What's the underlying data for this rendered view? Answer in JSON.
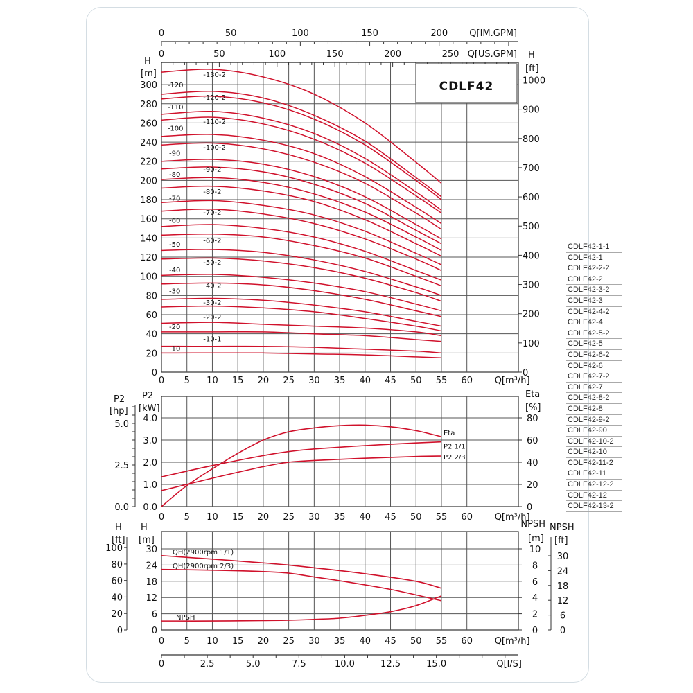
{
  "title_box": "CDLF42",
  "legend": [
    "CDLF42-1-1",
    "CDLF42-1",
    "CDLF42-2-2",
    "CDLF42-2",
    "CDLF42-3-2",
    "CDLF42-3",
    "CDLF42-4-2",
    "CDLF42-4",
    "CDLF42-5-2",
    "CDLF42-5",
    "CDLF42-6-2",
    "CDLF42-6",
    "CDLF42-7-2",
    "CDLF42-7",
    "CDLF42-8-2",
    "CDLF42-8",
    "CDLF42-9-2",
    "CDLF42-90",
    "CDLF42-10-2",
    "CDLF42-10",
    "CDLF42-11-2",
    "CDLF42-11",
    "CDLF42-12-2",
    "CDLF42-12",
    "CDLF42-13-2"
  ],
  "colors": {
    "curve": "#d0112b",
    "grid": "#555555",
    "axis": "#333333"
  },
  "chart_data": [
    {
      "type": "line",
      "xlabel": "Q[m³/h]",
      "ylabel": "H",
      "yunit": "[m]",
      "y2label": "H",
      "y2unit": "[ft]",
      "xlim": [
        0,
        70
      ],
      "ylim": [
        0,
        320
      ],
      "x_ticks": [
        "0",
        "5",
        "10",
        "15",
        "20",
        "25",
        "30",
        "35",
        "40",
        "45",
        "50",
        "55",
        "60"
      ],
      "y_ticks": [
        "0",
        "20",
        "40",
        "60",
        "80",
        "100",
        "120",
        "140",
        "160",
        "180",
        "200",
        "220",
        "240",
        "260",
        "280",
        "300"
      ],
      "y2_ticks": [
        "0",
        "100",
        "200",
        "300",
        "400",
        "500",
        "600",
        "700",
        "800",
        "900",
        "1000"
      ],
      "top_axes": [
        {
          "label": "Q[US.GPM]",
          "ticks": [
            "0",
            "50",
            "100",
            "150",
            "200",
            "250"
          ]
        },
        {
          "label": "Q[IM.GPM]",
          "ticks": [
            "0",
            "50",
            "100",
            "150",
            "200"
          ]
        }
      ],
      "grid": true,
      "x": [
        0,
        10,
        20,
        30,
        40,
        50,
        55
      ],
      "series": [
        {
          "values": [
            313,
            316,
            308,
            290,
            260,
            219,
            197
          ]
        },
        {
          "values": [
            290,
            293,
            286,
            268,
            241,
            203,
            183
          ]
        },
        {
          "values": [
            285,
            288,
            281,
            264,
            237,
            200,
            180
          ]
        },
        {
          "values": [
            269,
            272,
            265,
            249,
            223,
            188,
            169
          ]
        },
        {
          "values": [
            263,
            266,
            259,
            243,
            218,
            184,
            166
          ]
        },
        {
          "values": [
            246,
            248,
            242,
            228,
            204,
            172,
            155
          ]
        },
        {
          "values": [
            237,
            239,
            233,
            219,
            197,
            166,
            149
          ]
        },
        {
          "values": [
            220,
            222,
            217,
            204,
            183,
            154,
            139
          ]
        },
        {
          "values": [
            212,
            214,
            209,
            196,
            176,
            148,
            134
          ]
        },
        {
          "values": [
            201,
            203,
            198,
            186,
            167,
            141,
            127
          ]
        },
        {
          "values": [
            192,
            194,
            189,
            178,
            159,
            134,
            121
          ]
        },
        {
          "values": [
            177,
            179,
            174,
            164,
            147,
            124,
            112
          ]
        },
        {
          "values": [
            168,
            170,
            165,
            155,
            139,
            118,
            106
          ]
        },
        {
          "values": [
            152,
            154,
            150,
            141,
            126,
            106,
            96
          ]
        },
        {
          "values": [
            143,
            144,
            141,
            132,
            119,
            100,
            90
          ]
        },
        {
          "values": [
            127,
            128,
            125,
            117,
            105,
            89,
            80
          ]
        },
        {
          "values": [
            118,
            119,
            116,
            109,
            98,
            83,
            74
          ]
        },
        {
          "values": [
            101,
            102,
            99,
            93,
            84,
            71,
            64
          ]
        },
        {
          "values": [
            92,
            93,
            91,
            85,
            76,
            64,
            58
          ]
        },
        {
          "values": [
            76,
            77,
            75,
            70,
            63,
            53,
            48
          ]
        },
        {
          "values": [
            68,
            69,
            67,
            63,
            56,
            48,
            43
          ]
        },
        {
          "values": [
            51,
            52,
            50,
            48,
            46,
            42,
            38
          ]
        },
        {
          "values": [
            42,
            42,
            42,
            40,
            38,
            34,
            32
          ]
        },
        {
          "values": [
            27,
            27,
            27,
            26,
            24,
            22,
            20
          ]
        },
        {
          "values": [
            20,
            20,
            20,
            19,
            18,
            16,
            15
          ]
        }
      ],
      "curve_labels": [
        {
          "text": "-130-2",
          "q": 8.2,
          "h": 308
        },
        {
          "text": "-120",
          "q": 1.2,
          "h": 297
        },
        {
          "text": "-120-2",
          "q": 8.2,
          "h": 284
        },
        {
          "text": "-110",
          "q": 1.2,
          "h": 274
        },
        {
          "text": "-110-2",
          "q": 8.2,
          "h": 259
        },
        {
          "text": "-100",
          "q": 1.2,
          "h": 252
        },
        {
          "text": "-100-2",
          "q": 8.2,
          "h": 232
        },
        {
          "text": "-90",
          "q": 1.5,
          "h": 226
        },
        {
          "text": "-90-2",
          "q": 8.2,
          "h": 209
        },
        {
          "text": "-80",
          "q": 1.5,
          "h": 204
        },
        {
          "text": "-80-2",
          "q": 8.2,
          "h": 186
        },
        {
          "text": "-70",
          "q": 1.5,
          "h": 179
        },
        {
          "text": "-70-2",
          "q": 8.2,
          "h": 164
        },
        {
          "text": "-60",
          "q": 1.5,
          "h": 156
        },
        {
          "text": "-60-2",
          "q": 8.2,
          "h": 135
        },
        {
          "text": "-50",
          "q": 1.5,
          "h": 131
        },
        {
          "text": "-50-2",
          "q": 8.2,
          "h": 112
        },
        {
          "text": "-40",
          "q": 1.5,
          "h": 104
        },
        {
          "text": "-40-2",
          "q": 8.2,
          "h": 88
        },
        {
          "text": "-30",
          "q": 1.5,
          "h": 82
        },
        {
          "text": "-30-2",
          "q": 8.2,
          "h": 70
        },
        {
          "text": "-20-2",
          "q": 8.2,
          "h": 55
        },
        {
          "text": "-20",
          "q": 1.5,
          "h": 45
        },
        {
          "text": "-10-1",
          "q": 8.2,
          "h": 32
        },
        {
          "text": "-10",
          "q": 1.5,
          "h": 22
        }
      ]
    },
    {
      "type": "line",
      "xlabel": "Q[m³/h]",
      "ylabel": "P2",
      "yunit": "[kW]",
      "y_hp_label": "P2",
      "y_hp_unit": "[hp]",
      "y2label": "Eta",
      "y2unit": "[%]",
      "xlim": [
        0,
        70
      ],
      "ylim": [
        0,
        5
      ],
      "y2lim": [
        0,
        100
      ],
      "x_ticks": [
        "0",
        "5",
        "10",
        "15",
        "20",
        "25",
        "30",
        "35",
        "40",
        "45",
        "50",
        "55",
        "60"
      ],
      "y_ticks": [
        "0.0",
        "1.0",
        "2.0",
        "3.0",
        "4.0"
      ],
      "y_hp_ticks": [
        "0.0",
        "2.5",
        "5.0"
      ],
      "y2_ticks": [
        "0",
        "20",
        "40",
        "60",
        "80"
      ],
      "grid": true,
      "series": [
        {
          "name": "Eta",
          "axis": "y2",
          "x": [
            0,
            5,
            10,
            15,
            20,
            25,
            30,
            35,
            40,
            45,
            50,
            55
          ],
          "values": [
            0,
            19,
            34,
            48,
            60,
            67.5,
            71,
            73,
            73.5,
            72,
            68.5,
            63
          ]
        },
        {
          "name": "P2 1/1",
          "axis": "y",
          "x": [
            0,
            10,
            20,
            25,
            30,
            40,
            50,
            55
          ],
          "values": [
            1.34,
            1.85,
            2.3,
            2.48,
            2.6,
            2.75,
            2.87,
            2.92
          ]
        },
        {
          "name": "P2 2/3",
          "axis": "y",
          "x": [
            0,
            10,
            20,
            25,
            30,
            40,
            50,
            55
          ],
          "values": [
            0.72,
            1.28,
            1.8,
            2.0,
            2.08,
            2.18,
            2.26,
            2.28
          ]
        }
      ]
    },
    {
      "type": "line",
      "xlabel": "Q[m³/h]",
      "ylabel": "H",
      "yunit": "[m]",
      "y_ft_label": "H",
      "y_ft_unit": "[ft]",
      "y2label": "NPSH",
      "y2unit": "[m]",
      "y2_ft_label": "NPSH",
      "y2_ft_unit": "[ft]",
      "xlim": [
        0,
        70
      ],
      "ylim": [
        0,
        36
      ],
      "y2lim": [
        0,
        12
      ],
      "x_ticks": [
        "0",
        "5",
        "10",
        "15",
        "20",
        "25",
        "30",
        "35",
        "40",
        "45",
        "50",
        "55",
        "60"
      ],
      "y_ticks": [
        "0",
        "6",
        "12",
        "18",
        "24",
        "30"
      ],
      "y_ft_ticks": [
        "0",
        "20",
        "40",
        "60",
        "80",
        "100"
      ],
      "y2_ticks": [
        "0",
        "2",
        "4",
        "6",
        "8",
        "10"
      ],
      "y2_ft_ticks": [
        "0",
        "6",
        "12",
        "18",
        "24",
        "30"
      ],
      "flow_axis": {
        "label": "Q[l/S]",
        "ticks": [
          "0",
          "2.5",
          "5.0",
          "7.5",
          "10.0",
          "12.5",
          "15.0"
        ]
      },
      "grid": true,
      "series": [
        {
          "name": "QH(2900rpm 1/1)",
          "axis": "y",
          "x": [
            0,
            10,
            20,
            25,
            30,
            40,
            50,
            55
          ],
          "values": [
            27.5,
            26.2,
            24.8,
            24,
            23,
            20.8,
            18,
            15.4
          ]
        },
        {
          "name": "QH(2900rpm 2/3)",
          "axis": "y",
          "x": [
            0,
            10,
            20,
            25,
            30,
            35,
            45,
            55
          ],
          "values": [
            22.4,
            22.1,
            21.6,
            21,
            19.6,
            18.2,
            15,
            10.8
          ]
        },
        {
          "name": "NPSH",
          "axis": "y2",
          "x": [
            0,
            10,
            20,
            25,
            30,
            35,
            40,
            45,
            50,
            55
          ],
          "values": [
            1.1,
            1.1,
            1.15,
            1.2,
            1.3,
            1.45,
            1.8,
            2.25,
            3.0,
            4.2
          ]
        }
      ]
    }
  ]
}
